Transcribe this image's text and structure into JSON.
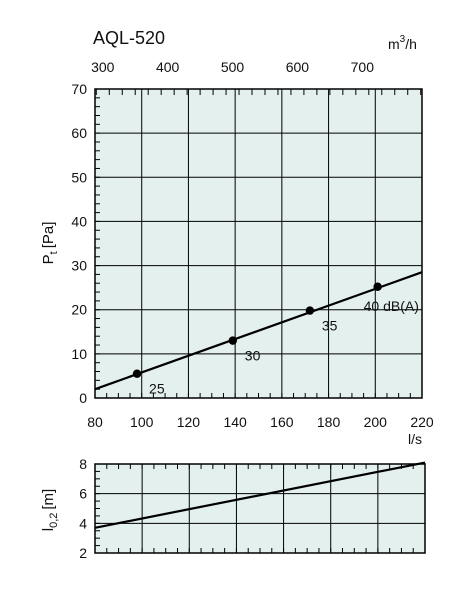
{
  "colors": {
    "plot_bg": "#e3f0ee",
    "grid": "#000000",
    "line": "#000000",
    "marker": "#000000"
  },
  "chart_data": [
    {
      "type": "line",
      "title": "AQL-520",
      "xlabel": "l/s",
      "ylabel_main": "P",
      "ylabel_sub": "t",
      "ylabel_unit": "[Pa]",
      "secondary_x_label_main": "m",
      "secondary_x_label_sup": "3",
      "secondary_x_label_rest": "/h",
      "xlim": [
        80,
        220
      ],
      "ylim": [
        0,
        70
      ],
      "grid": true,
      "x_ticks": [
        "80",
        "100",
        "120",
        "140",
        "160",
        "180",
        "200",
        "220"
      ],
      "y_ticks": [
        "0",
        "10",
        "20",
        "30",
        "40",
        "50",
        "60",
        "70"
      ],
      "secondary_x_ticks": [
        "300",
        "400",
        "500",
        "600",
        "700"
      ],
      "series": [
        {
          "x": [
            80,
            220
          ],
          "y": [
            2,
            28.5
          ]
        }
      ],
      "points": [
        {
          "x": 98,
          "y": 5.5,
          "label": "25"
        },
        {
          "x": 139,
          "y": 13,
          "label": "30"
        },
        {
          "x": 172,
          "y": 19.8,
          "label": "35"
        },
        {
          "x": 201,
          "y": 25.2,
          "label": "40 dB(A)"
        }
      ]
    },
    {
      "type": "line",
      "ylabel_main": "l",
      "ylabel_sub": "0,2",
      "ylabel_unit": "[m]",
      "xlim": [
        80,
        220
      ],
      "ylim": [
        2,
        8
      ],
      "grid": true,
      "y_ticks": [
        "2",
        "4",
        "6",
        "8"
      ],
      "series": [
        {
          "x": [
            80,
            220
          ],
          "y": [
            3.7,
            8.1
          ]
        }
      ]
    }
  ]
}
